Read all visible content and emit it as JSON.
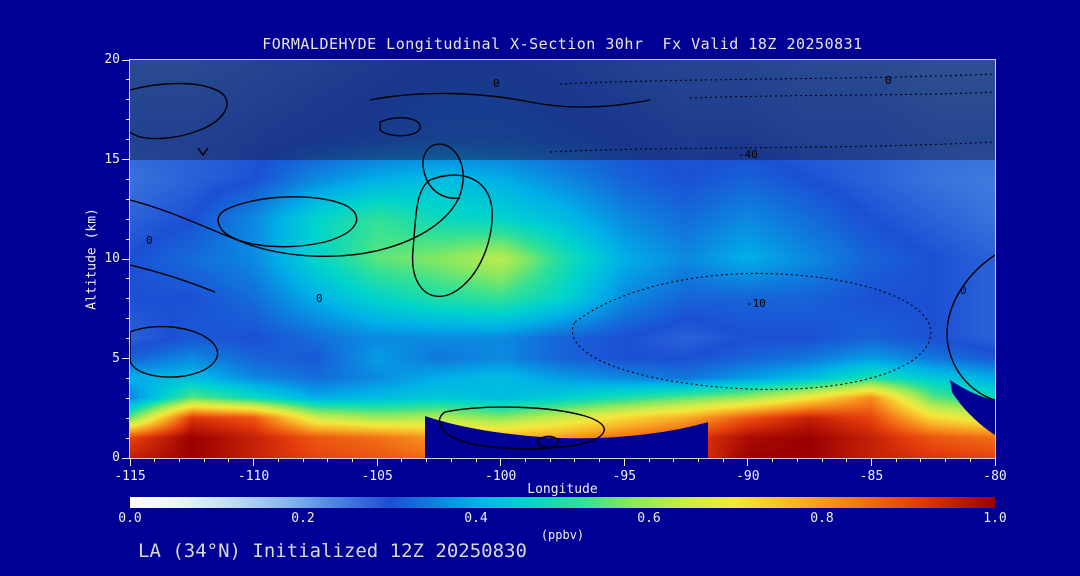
{
  "colors": {
    "background": "#000094",
    "frame": "#d0d0d0",
    "tick_text": "#f0f0f0",
    "title_text": "#ece6cc",
    "footer_text": "#d8d8d8",
    "contour": "#000000"
  },
  "chart_data": {
    "type": "heatmap",
    "title": "FORMALDEHYDE Longitudinal X-Section 30hr  Fx Valid 18Z 20250831",
    "xlabel": "Longitude",
    "ylabel": "Altitude (km)",
    "footer": "LA (34°N) Initialized 12Z 20250830",
    "colorbar_label": "(ppbv)",
    "colorbar_ticks": [
      "0.0",
      "0.2",
      "0.4",
      "0.6",
      "0.8",
      "1.0"
    ],
    "x_ticks": [
      "-115",
      "-110",
      "-105",
      "-100",
      "-95",
      "-90",
      "-85",
      "-80"
    ],
    "y_ticks": [
      "0",
      "5",
      "10",
      "15",
      "20"
    ],
    "xlim": [
      -115,
      -80
    ],
    "ylim": [
      0,
      20
    ],
    "zlim": [
      0,
      1
    ],
    "stratosphere_overlay_top_km": 15,
    "x": [
      -115,
      -112.5,
      -110,
      -107.5,
      -105,
      -102.5,
      -100,
      -97.5,
      -95,
      -92.5,
      -90,
      -87.5,
      -85,
      -82.5,
      -80
    ],
    "y": [
      0,
      1,
      2,
      3,
      4,
      5,
      6,
      8,
      10,
      12,
      14,
      16,
      18,
      20
    ],
    "values": [
      [
        0.95,
        1.0,
        0.95,
        0.9,
        0.88,
        0.85,
        0.82,
        0.85,
        0.88,
        0.9,
        1.0,
        1.0,
        0.95,
        0.92,
        0.9
      ],
      [
        0.9,
        1.0,
        0.95,
        0.88,
        0.85,
        0.8,
        0.78,
        0.8,
        0.85,
        0.9,
        0.98,
        1.0,
        0.95,
        0.88,
        0.85
      ],
      [
        0.55,
        0.92,
        0.88,
        0.65,
        0.6,
        0.62,
        0.58,
        0.65,
        0.72,
        0.78,
        0.88,
        0.95,
        0.9,
        0.72,
        0.65
      ],
      [
        0.35,
        0.55,
        0.48,
        0.4,
        0.42,
        0.44,
        0.42,
        0.45,
        0.5,
        0.55,
        0.6,
        0.7,
        0.82,
        0.55,
        0.48
      ],
      [
        0.4,
        0.42,
        0.36,
        0.33,
        0.36,
        0.4,
        0.42,
        0.38,
        0.36,
        0.34,
        0.38,
        0.42,
        0.5,
        0.44,
        0.4
      ],
      [
        0.32,
        0.36,
        0.32,
        0.31,
        0.38,
        0.34,
        0.36,
        0.32,
        0.3,
        0.3,
        0.32,
        0.34,
        0.38,
        0.34,
        0.31
      ],
      [
        0.28,
        0.31,
        0.3,
        0.33,
        0.36,
        0.36,
        0.36,
        0.32,
        0.3,
        0.28,
        0.3,
        0.3,
        0.32,
        0.3,
        0.28
      ],
      [
        0.3,
        0.3,
        0.33,
        0.4,
        0.46,
        0.5,
        0.52,
        0.46,
        0.36,
        0.32,
        0.32,
        0.32,
        0.3,
        0.3,
        0.28
      ],
      [
        0.3,
        0.33,
        0.36,
        0.46,
        0.55,
        0.58,
        0.63,
        0.5,
        0.4,
        0.36,
        0.4,
        0.36,
        0.32,
        0.3,
        0.28
      ],
      [
        0.28,
        0.3,
        0.36,
        0.46,
        0.52,
        0.48,
        0.46,
        0.42,
        0.36,
        0.33,
        0.36,
        0.33,
        0.3,
        0.28,
        0.26
      ],
      [
        0.26,
        0.28,
        0.3,
        0.36,
        0.4,
        0.42,
        0.4,
        0.36,
        0.32,
        0.3,
        0.32,
        0.3,
        0.28,
        0.26,
        0.25
      ],
      [
        0.28,
        0.28,
        0.29,
        0.3,
        0.31,
        0.32,
        0.32,
        0.31,
        0.3,
        0.29,
        0.29,
        0.28,
        0.28,
        0.27,
        0.27
      ],
      [
        0.27,
        0.27,
        0.28,
        0.29,
        0.3,
        0.31,
        0.31,
        0.3,
        0.29,
        0.28,
        0.28,
        0.27,
        0.27,
        0.26,
        0.26
      ],
      [
        0.26,
        0.26,
        0.27,
        0.28,
        0.29,
        0.3,
        0.3,
        0.29,
        0.28,
        0.27,
        0.27,
        0.26,
        0.26,
        0.25,
        0.25
      ]
    ],
    "colormap_stops": [
      [
        0.0,
        "#ffffff"
      ],
      [
        0.06,
        "#e8f4fc"
      ],
      [
        0.12,
        "#bcdcf4"
      ],
      [
        0.18,
        "#88b8ec"
      ],
      [
        0.24,
        "#4884e0"
      ],
      [
        0.3,
        "#1c50d4"
      ],
      [
        0.4,
        "#00b0e8"
      ],
      [
        0.46,
        "#00d4cc"
      ],
      [
        0.52,
        "#30e098"
      ],
      [
        0.58,
        "#88e860"
      ],
      [
        0.64,
        "#c8ec4c"
      ],
      [
        0.7,
        "#f4e83c"
      ],
      [
        0.77,
        "#f8b428"
      ],
      [
        0.84,
        "#f47818"
      ],
      [
        0.91,
        "#e43c0c"
      ],
      [
        1.0,
        "#9c0000"
      ]
    ],
    "contour_labels": [
      "0",
      "0",
      "0",
      "0",
      "0",
      "-10",
      "-40"
    ]
  }
}
